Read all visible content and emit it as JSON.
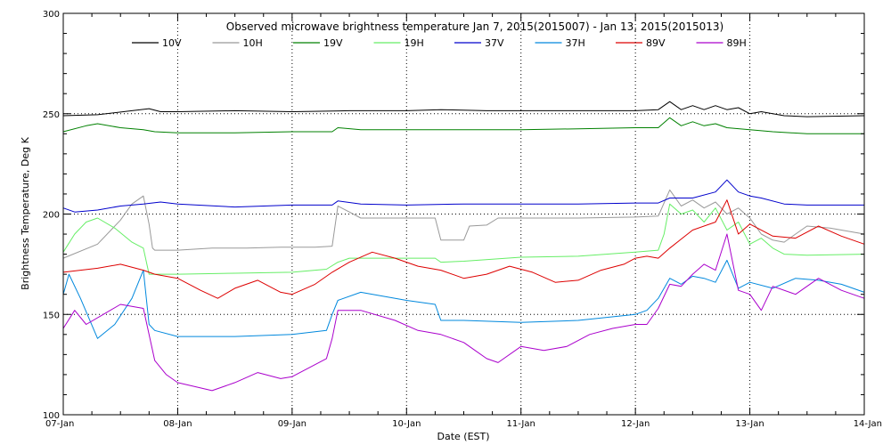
{
  "chart_data": {
    "type": "line",
    "title": "Observed microwave brightness temperature Jan  7, 2015(2015007) - Jan 13, 2015(2015013)",
    "xlabel": "Date (EST)",
    "ylabel": "Brightness Temperature, Deg K",
    "ylim": [
      100,
      300
    ],
    "xlim": [
      0,
      7
    ],
    "x_unit_note": "days",
    "y_ticks": [
      "100",
      "150",
      "200",
      "250",
      "300"
    ],
    "x_ticks": [
      "07-Jan",
      "08-Jan",
      "09-Jan",
      "10-Jan",
      "11-Jan",
      "12-Jan",
      "13-Jan",
      "14-Jan"
    ],
    "grid": "dotted, at x major ticks and y=150,200,250",
    "legend_position": "top",
    "series": [
      {
        "name": "10V",
        "color": "#000000",
        "points": [
          [
            0,
            249
          ],
          [
            0.3,
            249.5
          ],
          [
            0.6,
            251.5
          ],
          [
            0.75,
            252.5
          ],
          [
            0.85,
            251
          ],
          [
            1.0,
            251
          ],
          [
            1.5,
            251.5
          ],
          [
            2.0,
            251
          ],
          [
            2.5,
            251.5
          ],
          [
            3.0,
            251.5
          ],
          [
            3.3,
            252
          ],
          [
            3.7,
            251.5
          ],
          [
            4.0,
            251.5
          ],
          [
            4.5,
            251.5
          ],
          [
            5.0,
            251.5
          ],
          [
            5.2,
            252
          ],
          [
            5.3,
            256
          ],
          [
            5.4,
            252
          ],
          [
            5.5,
            254
          ],
          [
            5.6,
            252
          ],
          [
            5.7,
            254
          ],
          [
            5.8,
            252
          ],
          [
            5.9,
            253
          ],
          [
            6.0,
            250
          ],
          [
            6.1,
            251
          ],
          [
            6.3,
            249
          ],
          [
            6.5,
            248.5
          ],
          [
            7.0,
            249
          ]
        ]
      },
      {
        "name": "10H",
        "color": "#999999",
        "points": [
          [
            0,
            178
          ],
          [
            0.3,
            185
          ],
          [
            0.5,
            197
          ],
          [
            0.6,
            205
          ],
          [
            0.7,
            209
          ],
          [
            0.75,
            195
          ],
          [
            0.78,
            183
          ],
          [
            0.8,
            182
          ],
          [
            1.0,
            182
          ],
          [
            1.3,
            183
          ],
          [
            1.6,
            183
          ],
          [
            1.9,
            183.5
          ],
          [
            2.2,
            183.5
          ],
          [
            2.35,
            184
          ],
          [
            2.4,
            204
          ],
          [
            2.5,
            201
          ],
          [
            2.6,
            198
          ],
          [
            3.0,
            198
          ],
          [
            3.25,
            198
          ],
          [
            3.3,
            187
          ],
          [
            3.5,
            187
          ],
          [
            3.55,
            194
          ],
          [
            3.7,
            194.5
          ],
          [
            3.8,
            198
          ],
          [
            4.0,
            198
          ],
          [
            4.5,
            198
          ],
          [
            5.0,
            198.5
          ],
          [
            5.2,
            199
          ],
          [
            5.3,
            212
          ],
          [
            5.4,
            204
          ],
          [
            5.5,
            207
          ],
          [
            5.6,
            203
          ],
          [
            5.7,
            206
          ],
          [
            5.8,
            200
          ],
          [
            5.9,
            203
          ],
          [
            6.0,
            198
          ],
          [
            6.1,
            190
          ],
          [
            6.2,
            187
          ],
          [
            6.3,
            186
          ],
          [
            6.4,
            190
          ],
          [
            6.5,
            194
          ],
          [
            6.7,
            193
          ],
          [
            7.0,
            190
          ]
        ]
      },
      {
        "name": "19V",
        "color": "#008000",
        "points": [
          [
            0,
            241
          ],
          [
            0.2,
            244
          ],
          [
            0.3,
            245
          ],
          [
            0.5,
            243
          ],
          [
            0.7,
            242
          ],
          [
            0.8,
            241
          ],
          [
            1.0,
            240.5
          ],
          [
            1.5,
            240.5
          ],
          [
            2.0,
            241
          ],
          [
            2.35,
            241
          ],
          [
            2.4,
            243
          ],
          [
            2.6,
            242
          ],
          [
            3.0,
            242
          ],
          [
            3.5,
            242
          ],
          [
            4.0,
            242
          ],
          [
            4.5,
            242.5
          ],
          [
            5.0,
            243
          ],
          [
            5.2,
            243
          ],
          [
            5.3,
            248
          ],
          [
            5.4,
            244
          ],
          [
            5.5,
            246
          ],
          [
            5.6,
            244
          ],
          [
            5.7,
            245
          ],
          [
            5.8,
            243
          ],
          [
            6.0,
            242
          ],
          [
            6.2,
            241
          ],
          [
            6.5,
            240
          ],
          [
            7.0,
            240
          ]
        ]
      },
      {
        "name": "19H",
        "color": "#66ee66",
        "points": [
          [
            0,
            181
          ],
          [
            0.1,
            190
          ],
          [
            0.2,
            196
          ],
          [
            0.3,
            198
          ],
          [
            0.45,
            193
          ],
          [
            0.6,
            186
          ],
          [
            0.7,
            183
          ],
          [
            0.75,
            170
          ],
          [
            0.8,
            170
          ],
          [
            1.0,
            170
          ],
          [
            1.5,
            170.5
          ],
          [
            2.0,
            171
          ],
          [
            2.3,
            172.5
          ],
          [
            2.4,
            176
          ],
          [
            2.5,
            178
          ],
          [
            2.6,
            178
          ],
          [
            3.0,
            178
          ],
          [
            3.25,
            178
          ],
          [
            3.3,
            176
          ],
          [
            3.5,
            176.5
          ],
          [
            4.0,
            178.5
          ],
          [
            4.5,
            179
          ],
          [
            5.0,
            181
          ],
          [
            5.2,
            182
          ],
          [
            5.25,
            190
          ],
          [
            5.3,
            205
          ],
          [
            5.4,
            200
          ],
          [
            5.5,
            202
          ],
          [
            5.6,
            196
          ],
          [
            5.7,
            203
          ],
          [
            5.8,
            192
          ],
          [
            5.9,
            196
          ],
          [
            6.0,
            185
          ],
          [
            6.1,
            188
          ],
          [
            6.2,
            183
          ],
          [
            6.3,
            180
          ],
          [
            6.5,
            179.5
          ],
          [
            7.0,
            180
          ]
        ]
      },
      {
        "name": "37V",
        "color": "#0000cc",
        "points": [
          [
            0,
            203
          ],
          [
            0.1,
            201
          ],
          [
            0.3,
            202
          ],
          [
            0.5,
            204
          ],
          [
            0.7,
            205
          ],
          [
            0.85,
            206
          ],
          [
            1.0,
            205
          ],
          [
            1.5,
            203.5
          ],
          [
            2.0,
            204.5
          ],
          [
            2.35,
            204.5
          ],
          [
            2.4,
            206.5
          ],
          [
            2.6,
            205
          ],
          [
            3.0,
            204.5
          ],
          [
            3.5,
            205
          ],
          [
            4.0,
            205
          ],
          [
            4.5,
            205
          ],
          [
            5.0,
            205.5
          ],
          [
            5.2,
            205.5
          ],
          [
            5.3,
            208
          ],
          [
            5.5,
            208
          ],
          [
            5.7,
            211
          ],
          [
            5.8,
            217
          ],
          [
            5.9,
            211
          ],
          [
            6.0,
            209
          ],
          [
            6.1,
            208
          ],
          [
            6.3,
            205
          ],
          [
            6.5,
            204.5
          ],
          [
            7.0,
            204.5
          ]
        ]
      },
      {
        "name": "37H",
        "color": "#0088dd",
        "points": [
          [
            0,
            160
          ],
          [
            0.05,
            170
          ],
          [
            0.15,
            158
          ],
          [
            0.3,
            138
          ],
          [
            0.45,
            145
          ],
          [
            0.6,
            158
          ],
          [
            0.7,
            172
          ],
          [
            0.75,
            145
          ],
          [
            0.8,
            142
          ],
          [
            1.0,
            139
          ],
          [
            1.5,
            139
          ],
          [
            2.0,
            140
          ],
          [
            2.3,
            142
          ],
          [
            2.35,
            150
          ],
          [
            2.4,
            157
          ],
          [
            2.6,
            161
          ],
          [
            3.0,
            157
          ],
          [
            3.25,
            155
          ],
          [
            3.3,
            147
          ],
          [
            3.5,
            147
          ],
          [
            4.0,
            146
          ],
          [
            4.5,
            147
          ],
          [
            5.0,
            150
          ],
          [
            5.1,
            152
          ],
          [
            5.2,
            158
          ],
          [
            5.3,
            168
          ],
          [
            5.4,
            165
          ],
          [
            5.5,
            169
          ],
          [
            5.6,
            168
          ],
          [
            5.7,
            166
          ],
          [
            5.8,
            177
          ],
          [
            5.9,
            163
          ],
          [
            6.0,
            166
          ],
          [
            6.2,
            163
          ],
          [
            6.4,
            168
          ],
          [
            6.6,
            167
          ],
          [
            6.8,
            165
          ],
          [
            7.0,
            161
          ]
        ]
      },
      {
        "name": "89V",
        "color": "#dd0000",
        "points": [
          [
            0,
            171
          ],
          [
            0.3,
            173
          ],
          [
            0.5,
            175
          ],
          [
            0.7,
            172
          ],
          [
            0.8,
            170
          ],
          [
            1.0,
            168
          ],
          [
            1.2,
            162
          ],
          [
            1.35,
            158
          ],
          [
            1.5,
            163
          ],
          [
            1.7,
            167
          ],
          [
            1.9,
            161
          ],
          [
            2.0,
            160
          ],
          [
            2.2,
            165
          ],
          [
            2.35,
            171
          ],
          [
            2.5,
            176
          ],
          [
            2.7,
            181
          ],
          [
            2.9,
            178
          ],
          [
            3.1,
            174
          ],
          [
            3.3,
            172
          ],
          [
            3.5,
            168
          ],
          [
            3.7,
            170
          ],
          [
            3.9,
            174
          ],
          [
            4.1,
            171
          ],
          [
            4.3,
            166
          ],
          [
            4.5,
            167
          ],
          [
            4.7,
            172
          ],
          [
            4.9,
            175
          ],
          [
            5.0,
            178
          ],
          [
            5.1,
            179
          ],
          [
            5.2,
            178
          ],
          [
            5.3,
            183
          ],
          [
            5.5,
            192
          ],
          [
            5.7,
            196
          ],
          [
            5.8,
            207
          ],
          [
            5.9,
            190
          ],
          [
            6.0,
            195
          ],
          [
            6.2,
            189
          ],
          [
            6.4,
            188
          ],
          [
            6.6,
            194
          ],
          [
            6.8,
            189
          ],
          [
            7.0,
            185
          ]
        ]
      },
      {
        "name": "89H",
        "color": "#aa00cc",
        "points": [
          [
            0,
            143
          ],
          [
            0.1,
            152
          ],
          [
            0.2,
            145
          ],
          [
            0.35,
            150
          ],
          [
            0.5,
            155
          ],
          [
            0.7,
            153
          ],
          [
            0.8,
            127
          ],
          [
            0.9,
            120
          ],
          [
            1.0,
            116
          ],
          [
            1.3,
            112
          ],
          [
            1.5,
            116
          ],
          [
            1.7,
            121
          ],
          [
            1.9,
            118
          ],
          [
            2.0,
            119
          ],
          [
            2.3,
            128
          ],
          [
            2.35,
            138
          ],
          [
            2.4,
            152
          ],
          [
            2.6,
            152
          ],
          [
            2.9,
            147
          ],
          [
            3.1,
            142
          ],
          [
            3.3,
            140
          ],
          [
            3.5,
            136
          ],
          [
            3.6,
            132
          ],
          [
            3.7,
            128
          ],
          [
            3.8,
            126
          ],
          [
            4.0,
            134
          ],
          [
            4.2,
            132
          ],
          [
            4.4,
            134
          ],
          [
            4.6,
            140
          ],
          [
            4.8,
            143
          ],
          [
            5.0,
            145
          ],
          [
            5.1,
            145
          ],
          [
            5.2,
            153
          ],
          [
            5.3,
            165
          ],
          [
            5.4,
            164
          ],
          [
            5.5,
            170
          ],
          [
            5.6,
            175
          ],
          [
            5.7,
            172
          ],
          [
            5.8,
            190
          ],
          [
            5.9,
            162
          ],
          [
            6.0,
            160
          ],
          [
            6.1,
            152
          ],
          [
            6.2,
            164
          ],
          [
            6.4,
            160
          ],
          [
            6.6,
            168
          ],
          [
            6.8,
            162
          ],
          [
            7.0,
            158
          ]
        ]
      }
    ]
  }
}
